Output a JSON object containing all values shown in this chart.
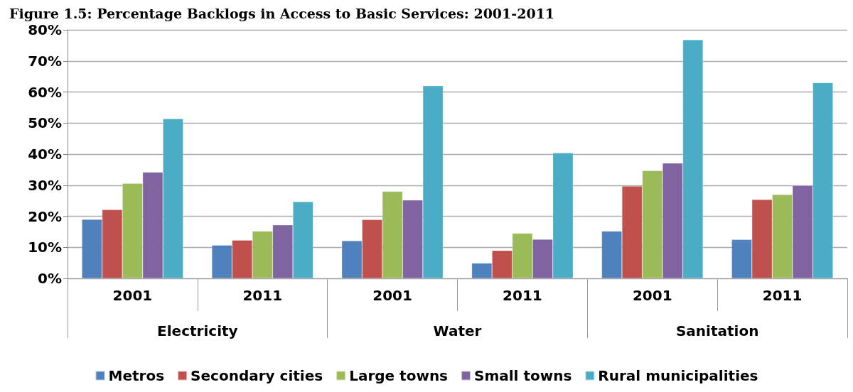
{
  "chart_data": {
    "type": "bar",
    "title": "Figure 1.5: Percentage Backlogs in Access to Basic Services: 2001-2011",
    "categories": [
      "2001",
      "2011",
      "2001",
      "2011",
      "2001",
      "2011"
    ],
    "annotations": [
      "Electricity",
      "Water",
      "Sanitation"
    ],
    "series": [
      {
        "name": "Metros",
        "color": "#4f81bd",
        "values": [
          19.0,
          10.7,
          12.1,
          4.9,
          15.2,
          12.5
        ]
      },
      {
        "name": "Secondary cities",
        "color": "#c0504d",
        "values": [
          22.1,
          12.3,
          18.9,
          9.0,
          29.7,
          25.4
        ]
      },
      {
        "name": "Large towns",
        "color": "#9bbb59",
        "values": [
          30.6,
          15.2,
          28.0,
          14.5,
          34.7,
          27.0
        ]
      },
      {
        "name": "Small towns",
        "color": "#8064a2",
        "values": [
          34.2,
          17.2,
          25.2,
          12.6,
          37.1,
          29.9
        ]
      },
      {
        "name": "Rural municipalities",
        "color": "#4bacc6",
        "values": [
          51.4,
          24.7,
          62.0,
          40.4,
          76.8,
          63.0
        ]
      }
    ],
    "ylim": [
      0,
      80
    ],
    "yticks": [
      {
        "value": 0,
        "label": "0%"
      },
      {
        "value": 10,
        "label": "10%"
      },
      {
        "value": 20,
        "label": "20%"
      },
      {
        "value": 30,
        "label": "30%"
      },
      {
        "value": 40,
        "label": "40%"
      },
      {
        "value": 50,
        "label": "50%"
      },
      {
        "value": 60,
        "label": "60%"
      },
      {
        "value": 70,
        "label": "70%"
      },
      {
        "value": 80,
        "label": "80%"
      }
    ],
    "grid": "y",
    "legend": "bottom"
  }
}
